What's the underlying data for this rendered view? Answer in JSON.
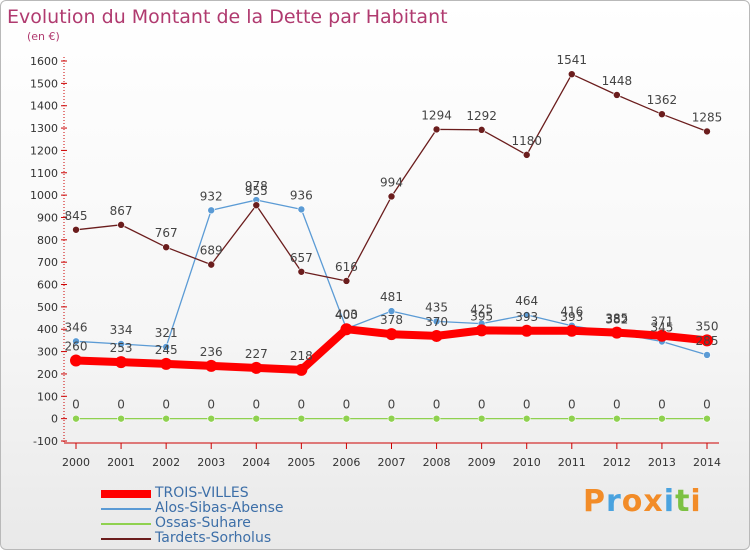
{
  "header": {
    "title": "Evolution du Montant de la Dette par Habitant",
    "subtitle": "(en €)"
  },
  "logo": {
    "letters": [
      "P",
      "r",
      "o",
      "x",
      "i",
      "t",
      "i"
    ],
    "text": "Proxiti"
  },
  "colors": {
    "title": "#b03a6f",
    "axis": "#cc0000",
    "series": [
      "#ff0000",
      "#5b9bd5",
      "#8fd14f",
      "#6b1d1d"
    ],
    "logo": [
      "#f28c28",
      "#4aa3df",
      "#f28c28",
      "#f28c28",
      "#4aa3df",
      "#7cc142",
      "#f28c28"
    ]
  },
  "chart_data": {
    "type": "line",
    "title": "Evolution du Montant de la Dette par Habitant",
    "ylabel": "(en €)",
    "xlabel": "",
    "x": [
      "2000",
      "2001",
      "2002",
      "2003",
      "2004",
      "2005",
      "2006",
      "2007",
      "2008",
      "2009",
      "2010",
      "2011",
      "2012",
      "2013",
      "2014"
    ],
    "ylim": [
      -100,
      1600
    ],
    "yticks": [
      -100,
      0,
      100,
      200,
      300,
      400,
      500,
      600,
      700,
      800,
      900,
      1000,
      1100,
      1200,
      1300,
      1400,
      1500,
      1600
    ],
    "grid": false,
    "legend_position": "bottom-left",
    "series": [
      {
        "name": "TROIS-VILLES",
        "values": [
          260,
          253,
          245,
          236,
          227,
          218,
          400,
          378,
          370,
          395,
          393,
          393,
          385,
          371,
          350
        ]
      },
      {
        "name": "Alos-Sibas-Abense",
        "values": [
          346,
          334,
          321,
          932,
          978,
          936,
          403,
          481,
          435,
          425,
          464,
          416,
          382,
          345,
          285
        ]
      },
      {
        "name": "Ossas-Suhare",
        "values": [
          0,
          0,
          0,
          0,
          0,
          0,
          0,
          0,
          0,
          0,
          0,
          0,
          0,
          0,
          0
        ]
      },
      {
        "name": "Tardets-Sorholus",
        "values": [
          845,
          867,
          767,
          689,
          955,
          657,
          616,
          994,
          1294,
          1292,
          1180,
          1541,
          1448,
          1362,
          1285
        ]
      }
    ],
    "data_labels": [
      [
        "260",
        "253",
        "245",
        "236",
        "227",
        "218",
        "400",
        "378",
        "370",
        "395",
        "393",
        "393",
        "385",
        "371",
        "350"
      ],
      [
        "346",
        "334",
        "321",
        "932",
        "978",
        "936",
        "403",
        "481",
        "435",
        "425",
        "464",
        "416",
        "382",
        "345",
        "285"
      ],
      [
        "0",
        "0",
        "0",
        "0",
        "0",
        "0",
        "0",
        "0",
        "0",
        "0",
        "0",
        "0",
        "0",
        "0",
        "0"
      ],
      [
        "845",
        "867",
        "767",
        "689",
        "955",
        "657",
        "616",
        "994",
        "1294",
        "1292",
        "1180",
        "1541",
        "1448",
        "1362",
        "1285"
      ]
    ]
  }
}
